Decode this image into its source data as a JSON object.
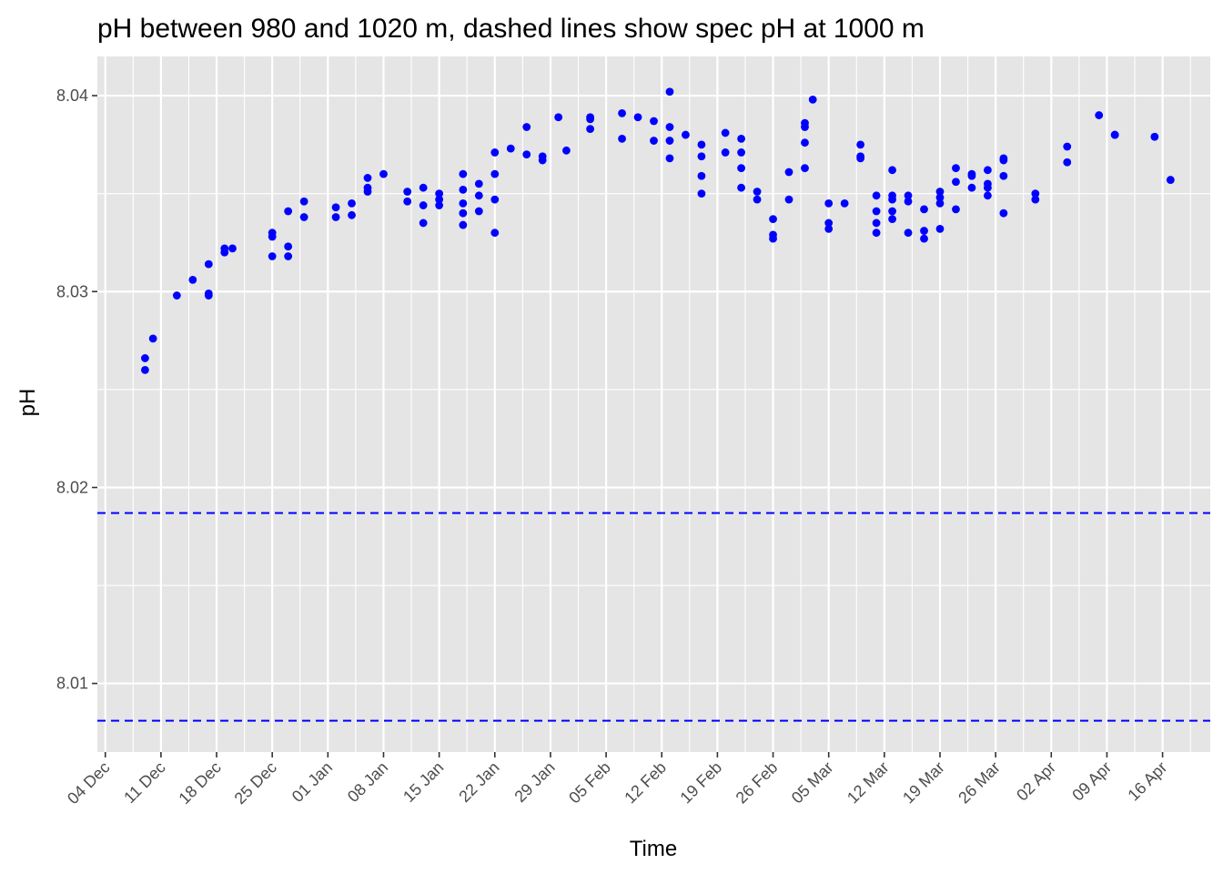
{
  "chart_data": {
    "type": "scatter",
    "title": "pH between 980 and 1020 m, dashed lines show spec pH at 1000 m",
    "xlabel": "Time",
    "ylabel": "pH",
    "x_axis_type": "date",
    "xlim": [
      "2017-12-03",
      "2018-04-22"
    ],
    "ylim": [
      8.0065,
      8.042
    ],
    "x_ticks": [
      "2017-12-04",
      "2017-12-11",
      "2017-12-18",
      "2017-12-25",
      "2018-01-01",
      "2018-01-08",
      "2018-01-15",
      "2018-01-22",
      "2018-01-29",
      "2018-02-05",
      "2018-02-12",
      "2018-02-19",
      "2018-02-26",
      "2018-03-05",
      "2018-03-12",
      "2018-03-19",
      "2018-03-26",
      "2018-04-02",
      "2018-04-09",
      "2018-04-16"
    ],
    "x_tick_labels": [
      "04 Dec",
      "11 Dec",
      "18 Dec",
      "25 Dec",
      "01 Jan",
      "08 Jan",
      "15 Jan",
      "22 Jan",
      "29 Jan",
      "05 Feb",
      "12 Feb",
      "19 Feb",
      "26 Feb",
      "05 Mar",
      "12 Mar",
      "19 Mar",
      "26 Mar",
      "02 Apr",
      "09 Apr",
      "16 Apr"
    ],
    "y_ticks": [
      8.01,
      8.02,
      8.03,
      8.04
    ],
    "y_tick_labels": [
      "8.01",
      "8.02",
      "8.03",
      "8.04"
    ],
    "grid": true,
    "reference_lines": [
      {
        "axis": "y",
        "value": 8.0187,
        "style": "dashed",
        "color": "#0000ff"
      },
      {
        "axis": "y",
        "value": 8.0081,
        "style": "dashed",
        "color": "#0000ff"
      }
    ],
    "colors": {
      "panel": "#e5e5e5",
      "grid": "#ffffff",
      "points": "#0000ff"
    },
    "series": [
      {
        "x": [
          "2017-12-09",
          "2017-12-09",
          "2017-12-10",
          "2017-12-13",
          "2017-12-15",
          "2017-12-17",
          "2017-12-17",
          "2017-12-17",
          "2017-12-19",
          "2017-12-19",
          "2017-12-20",
          "2017-12-25",
          "2017-12-25",
          "2017-12-25",
          "2017-12-27",
          "2017-12-27",
          "2017-12-27",
          "2017-12-29",
          "2017-12-29",
          "2018-01-02",
          "2018-01-02",
          "2018-01-04",
          "2018-01-04",
          "2018-01-06",
          "2018-01-06",
          "2018-01-06",
          "2018-01-08",
          "2018-01-11",
          "2018-01-11",
          "2018-01-13",
          "2018-01-13",
          "2018-01-13",
          "2018-01-15",
          "2018-01-15",
          "2018-01-15",
          "2018-01-18",
          "2018-01-18",
          "2018-01-18",
          "2018-01-18",
          "2018-01-18",
          "2018-01-20",
          "2018-01-20",
          "2018-01-20",
          "2018-01-22",
          "2018-01-22",
          "2018-01-22",
          "2018-01-22",
          "2018-01-24",
          "2018-01-26",
          "2018-01-26",
          "2018-01-28",
          "2018-01-28",
          "2018-01-30",
          "2018-01-31",
          "2018-02-03",
          "2018-02-03",
          "2018-02-03",
          "2018-02-07",
          "2018-02-07",
          "2018-02-09",
          "2018-02-11",
          "2018-02-11",
          "2018-02-13",
          "2018-02-13",
          "2018-02-13",
          "2018-02-13",
          "2018-02-15",
          "2018-02-17",
          "2018-02-17",
          "2018-02-17",
          "2018-02-17",
          "2018-02-20",
          "2018-02-20",
          "2018-02-22",
          "2018-02-22",
          "2018-02-22",
          "2018-02-22",
          "2018-02-24",
          "2018-02-24",
          "2018-02-26",
          "2018-02-26",
          "2018-02-26",
          "2018-02-28",
          "2018-02-28",
          "2018-03-02",
          "2018-03-02",
          "2018-03-02",
          "2018-03-02",
          "2018-03-03",
          "2018-03-05",
          "2018-03-05",
          "2018-03-05",
          "2018-03-07",
          "2018-03-09",
          "2018-03-09",
          "2018-03-09",
          "2018-03-11",
          "2018-03-11",
          "2018-03-11",
          "2018-03-11",
          "2018-03-13",
          "2018-03-13",
          "2018-03-13",
          "2018-03-13",
          "2018-03-13",
          "2018-03-15",
          "2018-03-15",
          "2018-03-15",
          "2018-03-17",
          "2018-03-17",
          "2018-03-17",
          "2018-03-19",
          "2018-03-19",
          "2018-03-19",
          "2018-03-19",
          "2018-03-21",
          "2018-03-21",
          "2018-03-21",
          "2018-03-23",
          "2018-03-23",
          "2018-03-23",
          "2018-03-25",
          "2018-03-25",
          "2018-03-25",
          "2018-03-25",
          "2018-03-27",
          "2018-03-27",
          "2018-03-27",
          "2018-03-27",
          "2018-03-31",
          "2018-03-31",
          "2018-04-04",
          "2018-04-04",
          "2018-04-08",
          "2018-04-10",
          "2018-04-10",
          "2018-04-15",
          "2018-04-17"
        ],
        "y": [
          8.0266,
          8.026,
          8.0276,
          8.0298,
          8.0306,
          8.0314,
          8.0298,
          8.0299,
          8.0322,
          8.032,
          8.0322,
          8.033,
          8.0328,
          8.0318,
          8.0341,
          8.0323,
          8.0318,
          8.0346,
          8.0338,
          8.0343,
          8.0338,
          8.0345,
          8.0339,
          8.0358,
          8.0353,
          8.0351,
          8.036,
          8.0351,
          8.0346,
          8.0353,
          8.0344,
          8.0335,
          8.035,
          8.0347,
          8.0344,
          8.036,
          8.0352,
          8.0345,
          8.034,
          8.0334,
          8.0355,
          8.0349,
          8.0341,
          8.0371,
          8.036,
          8.0347,
          8.033,
          8.0373,
          8.0384,
          8.037,
          8.0369,
          8.0367,
          8.0389,
          8.0372,
          8.0389,
          8.0388,
          8.0383,
          8.0391,
          8.0378,
          8.0389,
          8.0387,
          8.0377,
          8.0402,
          8.0384,
          8.0377,
          8.0368,
          8.038,
          8.0375,
          8.0369,
          8.0359,
          8.035,
          8.0381,
          8.0371,
          8.0378,
          8.0371,
          8.0363,
          8.0353,
          8.0351,
          8.0347,
          8.0337,
          8.0329,
          8.0327,
          8.0361,
          8.0347,
          8.0386,
          8.0384,
          8.0376,
          8.0363,
          8.0398,
          8.0345,
          8.0335,
          8.0332,
          8.0345,
          8.0375,
          8.0369,
          8.0368,
          8.0349,
          8.0341,
          8.0335,
          8.033,
          8.0362,
          8.0349,
          8.0347,
          8.0341,
          8.0337,
          8.0349,
          8.0346,
          8.033,
          8.0342,
          8.0331,
          8.0327,
          8.0351,
          8.0348,
          8.0345,
          8.0332,
          8.0363,
          8.0356,
          8.0342,
          8.036,
          8.0359,
          8.0353,
          8.0362,
          8.0355,
          8.0353,
          8.0349,
          8.0368,
          8.0367,
          8.0359,
          8.034,
          8.035,
          8.0347,
          8.0374,
          8.0366,
          8.039,
          8.038,
          8.038,
          8.0379,
          8.0357
        ]
      }
    ]
  }
}
